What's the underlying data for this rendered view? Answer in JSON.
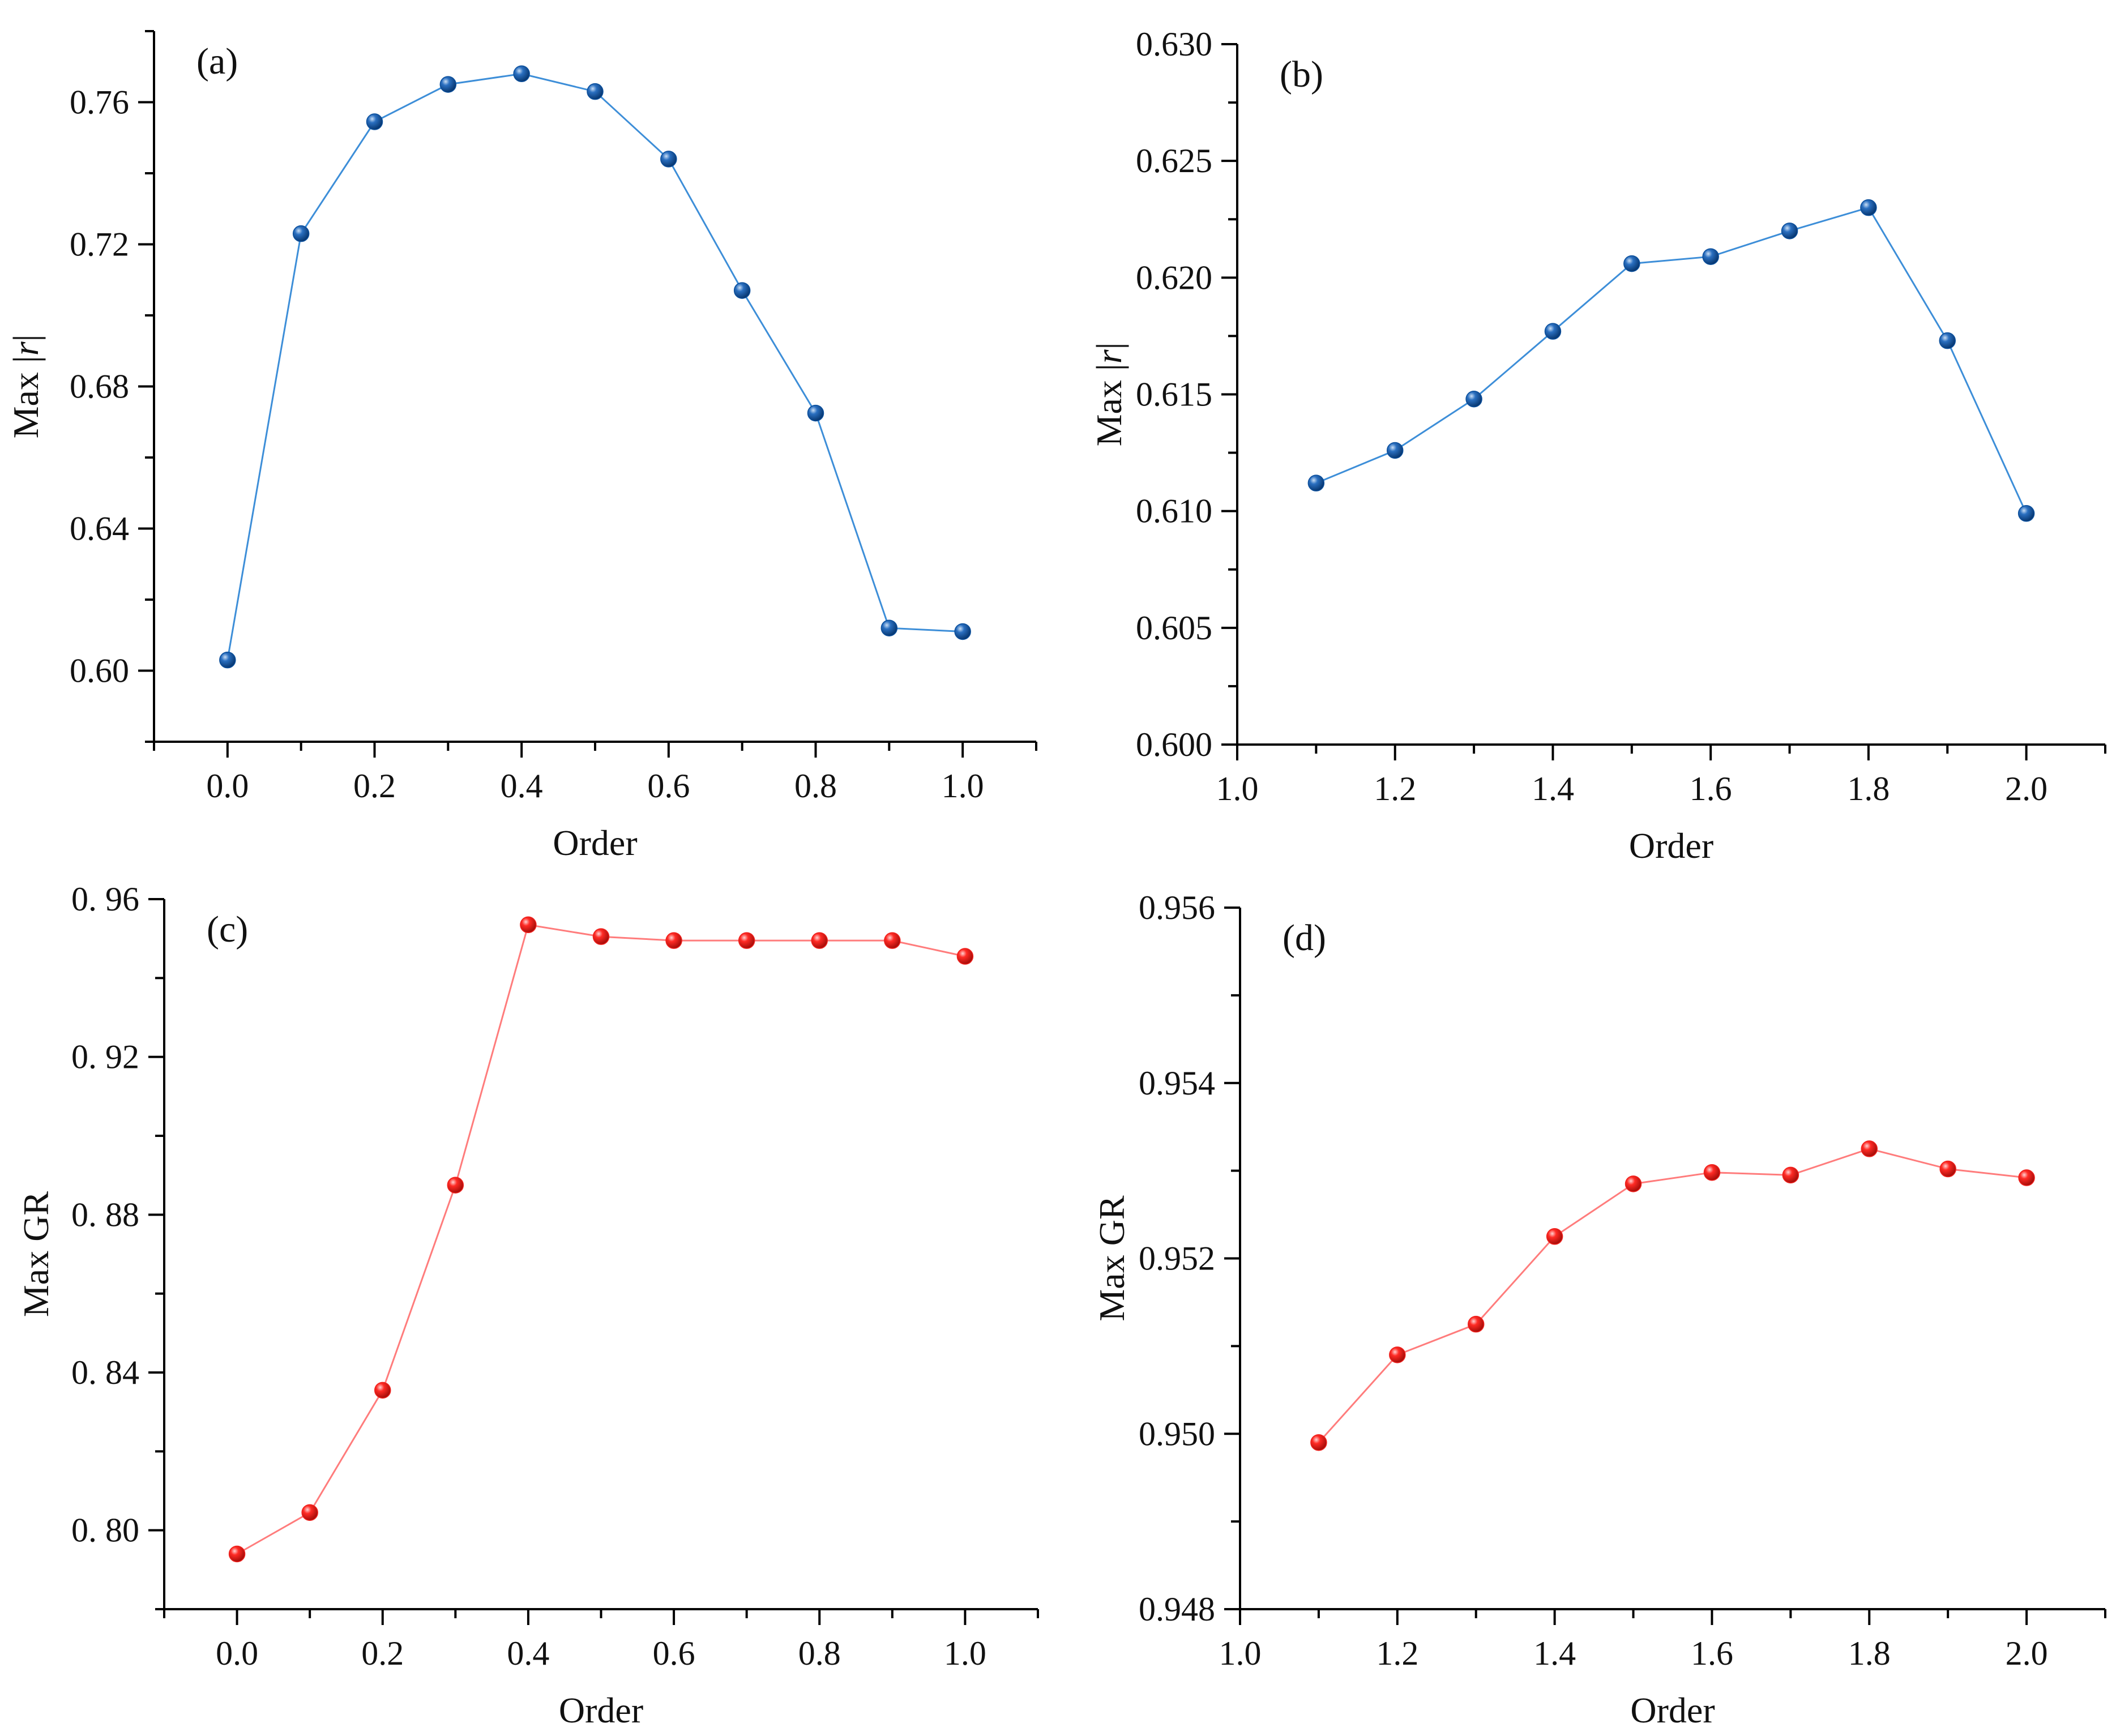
{
  "figure": {
    "colors": {
      "blue_series": "#0b4f9c",
      "blue_line": "#3d8ed8",
      "red_series": "#f0211d",
      "red_line": "#ff7c7c",
      "axis": "#000000"
    },
    "chart_data": [
      {
        "id": "a",
        "type": "line",
        "panel_label": "(a)",
        "xlabel": "Order",
        "ylabel_prefix": "Max |",
        "ylabel_italic": "r",
        "ylabel_suffix": "|",
        "x": [
          0.0,
          0.1,
          0.2,
          0.3,
          0.4,
          0.5,
          0.6,
          0.7,
          0.8,
          0.9,
          1.0
        ],
        "series": [
          {
            "name": "Max |r|",
            "values": [
              0.603,
              0.723,
              0.7545,
              0.765,
              0.768,
              0.763,
              0.744,
              0.707,
              0.6725,
              0.612,
              0.611
            ],
            "color": "#0b4f9c",
            "line_color": "#3d8ed8"
          }
        ],
        "xlim": [
          -0.1,
          1.1
        ],
        "ylim": [
          0.58,
          0.78
        ],
        "xticks": [
          0.0,
          0.2,
          0.4,
          0.6,
          0.8,
          1.0
        ],
        "xtick_labels": [
          "0.0",
          "0.2",
          "0.4",
          "0.6",
          "0.8",
          "1.0"
        ],
        "yticks": [
          0.6,
          0.64,
          0.68,
          0.72,
          0.76
        ],
        "ytick_labels": [
          "0.60",
          "0.64",
          "0.68",
          "0.72",
          "0.76"
        ],
        "grid": false
      },
      {
        "id": "b",
        "type": "line",
        "panel_label": "(b)",
        "xlabel": "Order",
        "ylabel_prefix": "Max |",
        "ylabel_italic": "r",
        "ylabel_suffix": "|",
        "x": [
          1.1,
          1.2,
          1.3,
          1.4,
          1.5,
          1.6,
          1.7,
          1.8,
          1.9,
          2.0
        ],
        "series": [
          {
            "name": "Max |r|",
            "values": [
              0.6112,
              0.6126,
              0.6148,
              0.6177,
              0.6206,
              0.6209,
              0.622,
              0.623,
              0.6173,
              0.6099
            ],
            "color": "#0b4f9c",
            "line_color": "#3d8ed8"
          }
        ],
        "xlim": [
          1.0,
          2.1
        ],
        "ylim": [
          0.6,
          0.63
        ],
        "xticks": [
          1.0,
          1.2,
          1.4,
          1.6,
          1.8,
          2.0
        ],
        "xtick_labels": [
          "1.0",
          "1.2",
          "1.4",
          "1.6",
          "1.8",
          "2.0"
        ],
        "yticks": [
          0.6,
          0.605,
          0.61,
          0.615,
          0.62,
          0.625,
          0.63
        ],
        "ytick_labels": [
          "0.600",
          "0.605",
          "0.610",
          "0.615",
          "0.620",
          "0.625",
          "0.630"
        ],
        "grid": false
      },
      {
        "id": "c",
        "type": "line",
        "panel_label": "(c)",
        "xlabel": "Order",
        "ylabel_prefix": "Max GR",
        "ylabel_italic": "",
        "ylabel_suffix": "",
        "x": [
          0.0,
          0.1,
          0.2,
          0.3,
          0.4,
          0.5,
          0.6,
          0.7,
          0.8,
          0.9,
          1.0
        ],
        "series": [
          {
            "name": "Max GR",
            "values": [
              0.794,
              0.8045,
              0.8355,
              0.8875,
              0.9535,
              0.9505,
              0.9495,
              0.9495,
              0.9495,
              0.9495,
              0.9455
            ],
            "color": "#f0211d",
            "line_color": "#ff7c7c"
          }
        ],
        "xlim": [
          -0.1,
          1.1
        ],
        "ylim": [
          0.78,
          0.96
        ],
        "xticks": [
          0.0,
          0.2,
          0.4,
          0.6,
          0.8,
          1.0
        ],
        "xtick_labels": [
          "0.0",
          "0.2",
          "0.4",
          "0.6",
          "0.8",
          "1.0"
        ],
        "yticks": [
          0.8,
          0.84,
          0.88,
          0.92,
          0.96
        ],
        "ytick_labels": [
          "0. 80",
          "0. 84",
          "0. 88",
          "0. 92",
          "0. 96"
        ],
        "grid": false
      },
      {
        "id": "d",
        "type": "line",
        "panel_label": "(d)",
        "xlabel": "Order",
        "ylabel_prefix": "Max GR",
        "ylabel_italic": "",
        "ylabel_suffix": "",
        "x": [
          1.1,
          1.2,
          1.3,
          1.4,
          1.5,
          1.6,
          1.7,
          1.8,
          1.9,
          2.0
        ],
        "series": [
          {
            "name": "Max GR",
            "values": [
              0.9499,
              0.9509,
              0.95125,
              0.95225,
              0.95285,
              0.95298,
              0.95295,
              0.95325,
              0.95302,
              0.95292
            ],
            "color": "#f0211d",
            "line_color": "#ff7c7c"
          }
        ],
        "xlim": [
          1.0,
          2.1
        ],
        "ylim": [
          0.948,
          0.956
        ],
        "xticks": [
          1.0,
          1.2,
          1.4,
          1.6,
          1.8,
          2.0
        ],
        "xtick_labels": [
          "1.0",
          "1.2",
          "1.4",
          "1.6",
          "1.8",
          "2.0"
        ],
        "yticks": [
          0.948,
          0.95,
          0.952,
          0.954,
          0.956
        ],
        "ytick_labels": [
          "0.948",
          "0.950",
          "0.952",
          "0.954",
          "0.956"
        ],
        "grid": false
      }
    ]
  }
}
